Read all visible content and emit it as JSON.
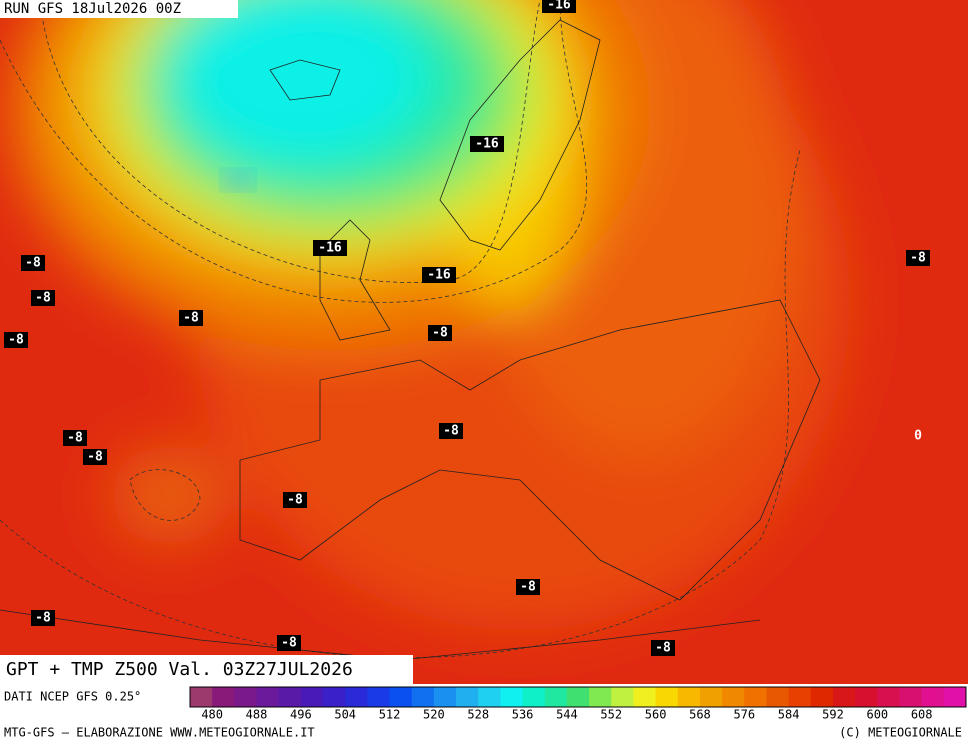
{
  "header": {
    "run": "RUN GFS 18Jul2026 00Z"
  },
  "map": {
    "title": "GPT + TMP Z500 Val. 03Z27JUL2026",
    "isotherm_labels": [
      "-16",
      "-16",
      "-16",
      "-16",
      "-8",
      "-8",
      "-8",
      "-8",
      "-8",
      "-8",
      "-8",
      "-8",
      "-8",
      "-8",
      "-8",
      "-8",
      "-8",
      "-8",
      "0"
    ]
  },
  "colorbar": {
    "source": "DATI NCEP GFS 0.25°",
    "labels": [
      "480",
      "488",
      "496",
      "504",
      "512",
      "520",
      "528",
      "536",
      "544",
      "552",
      "560",
      "568",
      "576",
      "584",
      "592",
      "600",
      "608"
    ],
    "colors": [
      "#9c3a6e",
      "#8a1a7a",
      "#7a1a8a",
      "#6a1a9a",
      "#5a1aa8",
      "#4a1ab8",
      "#3a20c8",
      "#2a2ad8",
      "#1a3ae8",
      "#0a50f0",
      "#1070f0",
      "#1a90f0",
      "#20b0f0",
      "#20d0f0",
      "#10f0f0",
      "#10f0c8",
      "#20e8a0",
      "#40e070",
      "#80e850",
      "#c0f040",
      "#f0f020",
      "#f8d800",
      "#f8b800",
      "#f0a000",
      "#f08800",
      "#f07000",
      "#e85800",
      "#e84000",
      "#e02800",
      "#d81818",
      "#d81030",
      "#d81050",
      "#d81070",
      "#e01090",
      "#e010a8"
    ]
  },
  "footer": {
    "left": "MTG-GFS — ELABORAZIONE WWW.METEOGIORNALE.IT",
    "right": "(C) METEOGIORNALE"
  }
}
